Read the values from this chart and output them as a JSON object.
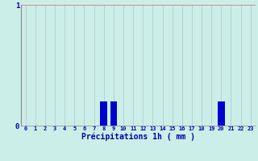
{
  "hours": [
    0,
    1,
    2,
    3,
    4,
    5,
    6,
    7,
    8,
    9,
    10,
    11,
    12,
    13,
    14,
    15,
    16,
    17,
    18,
    19,
    20,
    21,
    22,
    23
  ],
  "values": [
    0,
    0,
    0,
    0,
    0,
    0,
    0,
    0,
    0.2,
    0.2,
    0,
    0,
    0,
    0,
    0,
    0,
    0,
    0,
    0,
    0,
    0.2,
    0,
    0,
    0
  ],
  "bar_color": "#0000cc",
  "background_color": "#cceee8",
  "grid_color_v": "#b8c8c8",
  "xlabel": "Précipitations 1h ( mm )",
  "xlabel_color": "#0000aa",
  "tick_color": "#0000aa",
  "ylim": [
    0,
    1
  ],
  "xlim": [
    -0.5,
    23.5
  ],
  "ytick_labels": [
    "0",
    "1"
  ],
  "ytick_values": [
    0,
    1
  ]
}
